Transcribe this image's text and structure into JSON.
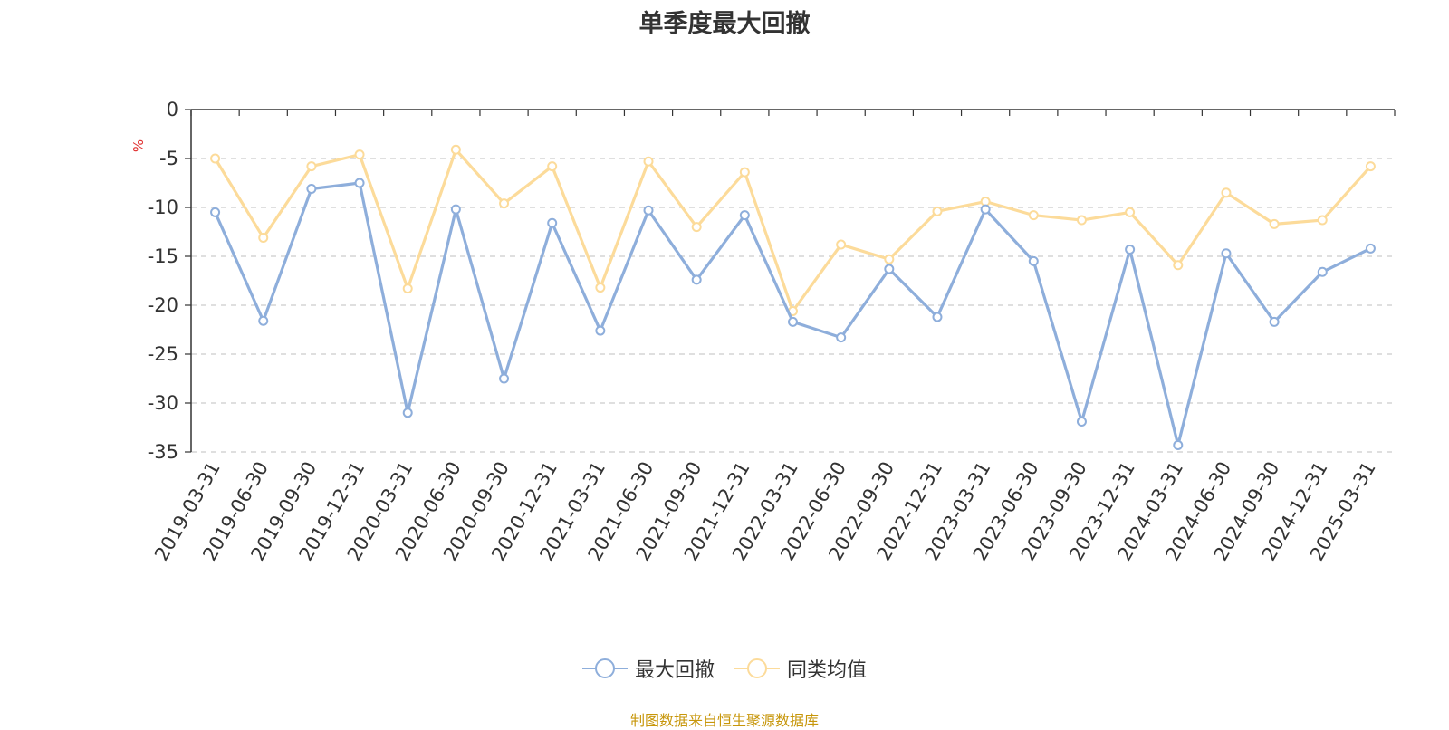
{
  "title": "单季度最大回撤",
  "source_note": "制图数据来自恒生聚源数据库",
  "chart_data": {
    "type": "line",
    "title": "单季度最大回撤",
    "ylabel": "%",
    "xlabel": "",
    "ylim": [
      -35,
      0
    ],
    "yticks": [
      0,
      -5,
      -10,
      -15,
      -20,
      -25,
      -30,
      -35
    ],
    "grid": true,
    "legend_position": "bottom-center",
    "categories": [
      "2019-03-31",
      "2019-06-30",
      "2019-09-30",
      "2019-12-31",
      "2020-03-31",
      "2020-06-30",
      "2020-09-30",
      "2020-12-31",
      "2021-03-31",
      "2021-06-30",
      "2021-09-30",
      "2021-12-31",
      "2022-03-31",
      "2022-06-30",
      "2022-09-30",
      "2022-12-31",
      "2023-03-31",
      "2023-06-30",
      "2023-09-30",
      "2023-12-31",
      "2024-03-31",
      "2024-06-30",
      "2024-09-30",
      "2024-12-31",
      "2025-03-31"
    ],
    "series": [
      {
        "name": "最大回撤",
        "color": "#8eaedb",
        "values": [
          -10.5,
          -21.6,
          -8.1,
          -7.5,
          -31.0,
          -10.2,
          -27.5,
          -11.6,
          -22.6,
          -10.3,
          -17.4,
          -10.8,
          -21.7,
          -23.3,
          -16.3,
          -21.2,
          -10.2,
          -15.5,
          -31.9,
          -14.3,
          -34.3,
          -14.7,
          -21.7,
          -16.6,
          -14.2
        ]
      },
      {
        "name": "同类均值",
        "color": "#fcdb9a",
        "values": [
          -5.0,
          -13.1,
          -5.8,
          -4.6,
          -18.3,
          -4.1,
          -9.6,
          -5.8,
          -18.2,
          -5.3,
          -12.0,
          -6.4,
          -20.6,
          -13.8,
          -15.3,
          -10.4,
          -9.4,
          -10.8,
          -11.3,
          -10.5,
          -15.9,
          -8.5,
          -11.7,
          -11.3,
          -5.8
        ]
      }
    ]
  }
}
